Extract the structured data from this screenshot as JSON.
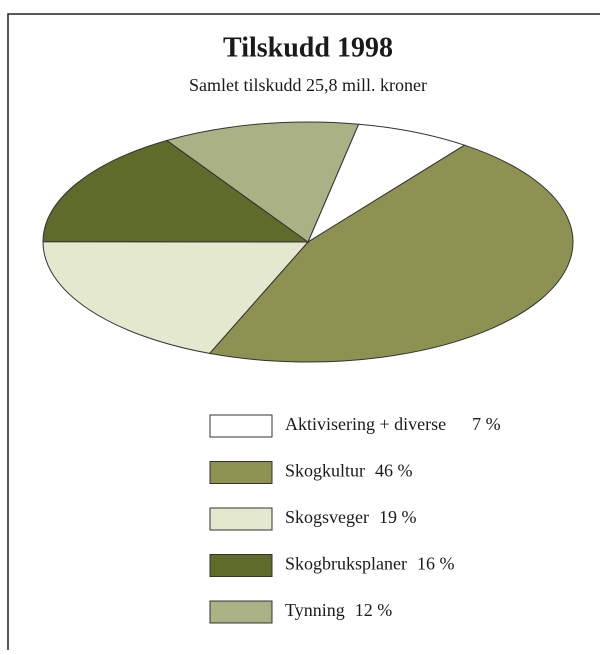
{
  "chart_data": {
    "type": "pie",
    "title": "Tilskudd 1998",
    "subtitle": "Samlet tilskudd 25,8 mill. kroner",
    "categories": [
      "Aktivisering + diverse",
      "Skogkultur",
      "Skogsveger",
      "Skogbruksplaner",
      "Tynning"
    ],
    "values": [
      7,
      46,
      19,
      16,
      12
    ],
    "value_labels": [
      "7 %",
      "46 %",
      "19 %",
      "16 %",
      "12 %"
    ],
    "colors": [
      "#ffffff",
      "#8d9152",
      "#e4e8cf",
      "#5f6b2b",
      "#aab185"
    ]
  }
}
